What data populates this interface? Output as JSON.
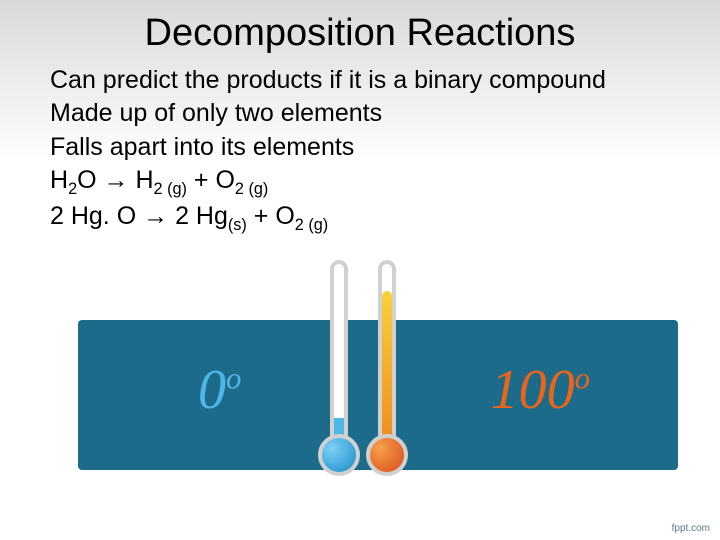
{
  "title": "Decomposition Reactions",
  "lines": {
    "l1": "Can predict the products if it is a binary compound",
    "l2": "Made up of only two elements",
    "l3": "Falls apart into its elements"
  },
  "equations": {
    "eq1": {
      "lhs_base": "H",
      "lhs_sub1": "2",
      "lhs_tail": "O",
      "arrow": "→",
      "r1_base": "H",
      "r1_sub": "2 (g)",
      "plus": "+",
      "r2_base": "O",
      "r2_sub": "2 (g)"
    },
    "eq2": {
      "lhs": "2 Hg. O",
      "arrow": "→",
      "r1_base": "2 Hg",
      "r1_sub": "(s)",
      "plus": "+",
      "r2_base": "O",
      "r2_sub": "2 (g)"
    }
  },
  "banner": {
    "background_color": "#1d6b8a",
    "cold": {
      "value": "0",
      "deg": "o",
      "color": "#4fb6e8",
      "bulb_color": "#1a8bc9",
      "fill_height": 28
    },
    "hot": {
      "value": "100",
      "deg": "o",
      "color": "#e8651a",
      "bulb_color": "#d94b1a",
      "fill_height": 155
    }
  },
  "footer": "fppt.com"
}
